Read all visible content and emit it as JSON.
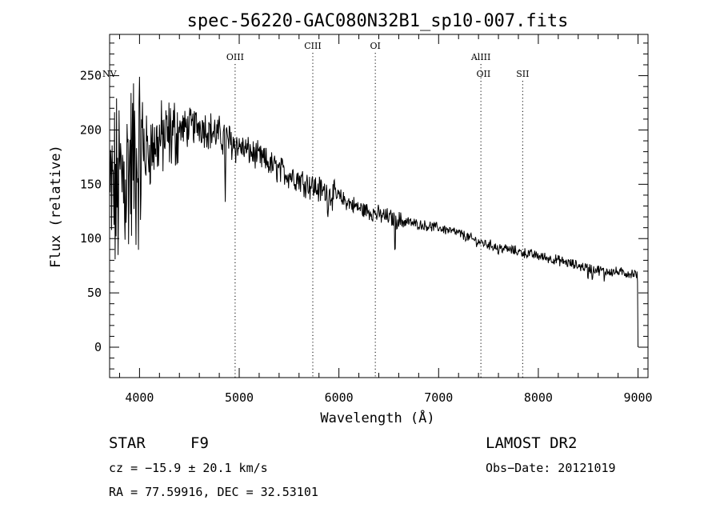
{
  "chart_data": {
    "type": "line",
    "title": "spec-56220-GAC080N32B1_sp10-007.fits",
    "xlabel": "Wavelength (Å)",
    "ylabel": "Flux (relative)",
    "xlim": [
      3700,
      9100
    ],
    "ylim": [
      -28,
      288
    ],
    "x_ticks": [
      "4000",
      "5000",
      "6000",
      "7000",
      "8000",
      "9000"
    ],
    "x_tick_values": [
      4000,
      5000,
      6000,
      7000,
      8000,
      9000
    ],
    "y_ticks": [
      "0",
      "50",
      "100",
      "150",
      "200",
      "250"
    ],
    "y_tick_values": [
      0,
      50,
      100,
      150,
      200,
      250
    ],
    "spectrum_anchors": {
      "x": [
        3700,
        3800,
        3900,
        4000,
        4200,
        4400,
        4600,
        4800,
        5000,
        5200,
        5400,
        5600,
        5800,
        6000,
        6200,
        6400,
        6600,
        6800,
        7000,
        7200,
        7400,
        7600,
        7800,
        8000,
        8200,
        8400,
        8600,
        8800,
        9000
      ],
      "y": [
        130,
        150,
        165,
        175,
        190,
        200,
        205,
        195,
        185,
        175,
        163,
        155,
        145,
        138,
        128,
        122,
        117,
        113,
        110,
        105,
        97,
        92,
        88,
        84,
        80,
        75,
        71,
        69,
        67
      ]
    },
    "absorption_features": [
      {
        "x": 4861,
        "depth": 55
      },
      {
        "x": 6563,
        "depth": 35
      },
      {
        "x": 5890,
        "depth": 12
      },
      {
        "x": 8498,
        "depth": 10
      },
      {
        "x": 8542,
        "depth": 12
      },
      {
        "x": 8662,
        "depth": 10
      },
      {
        "x": 7600,
        "depth": 8
      }
    ],
    "line_markers": [
      {
        "label": "NV",
        "x": 3700,
        "row": 2,
        "dotted": false
      },
      {
        "label": "OIII",
        "x": 4959,
        "row": 1,
        "dotted": true
      },
      {
        "label": "CIII",
        "x": 5738,
        "row": 0,
        "dotted": true
      },
      {
        "label": "OI",
        "x": 6365,
        "row": 0,
        "dotted": true
      },
      {
        "label": "AlIII",
        "x": 7424,
        "row": 1,
        "dotted": true
      },
      {
        "label": "OII",
        "x": 7450,
        "row": 2,
        "dotted": false
      },
      {
        "label": "SII",
        "x": 7843,
        "row": 2,
        "dotted": true
      }
    ]
  },
  "info": {
    "class_label": "STAR",
    "subclass": "F9",
    "survey": "LAMOST DR2",
    "cz": "cz = −15.9 ± 20.1 km/s",
    "obs_date": "Obs−Date: 20121019",
    "coords": "RA =  77.59916, DEC =  32.53101"
  },
  "colors": {
    "axis": "#000000",
    "line": "#000000",
    "background": "#ffffff"
  }
}
